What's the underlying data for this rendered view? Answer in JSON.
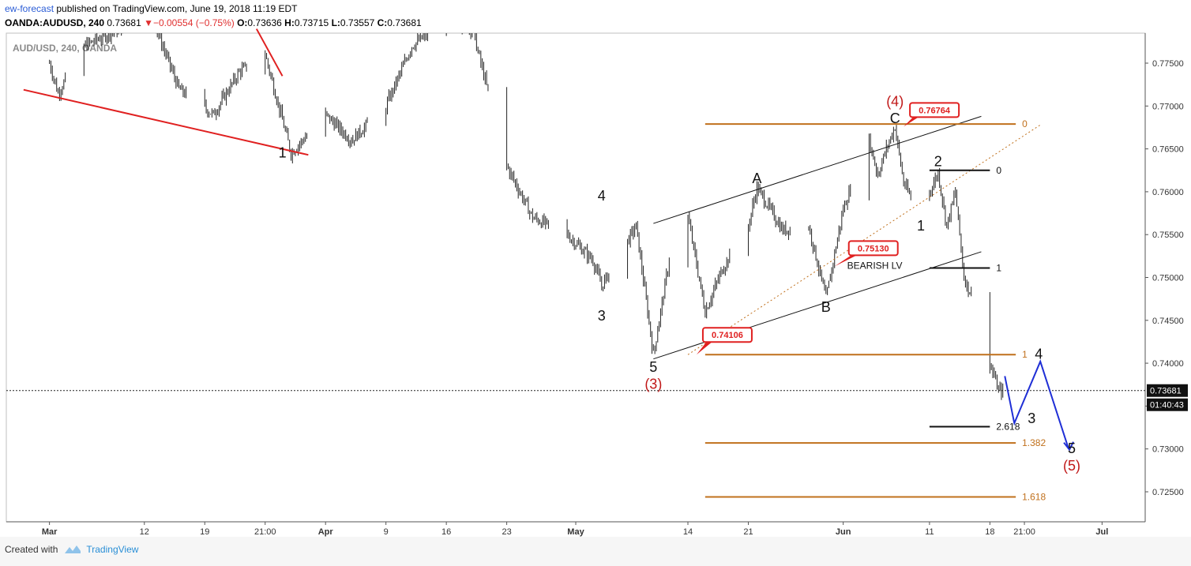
{
  "header": {
    "author": "ew-forecast",
    "published": "published on TradingView.com, June 19, 2018 11:19 EDT",
    "symbol": "OANDA:AUDUSD, 240",
    "last": "0.73681",
    "change": "▼−0.00554 (−0.75%)",
    "open_label": "O:",
    "open": "0.73636",
    "high_label": "H:",
    "high": "0.73715",
    "low_label": "L:",
    "low": "0.73557",
    "close_label": "C:",
    "close": "0.73681"
  },
  "watermark": "AUD/USD, 240, OANDA",
  "footer": {
    "created_with": "Created with",
    "brand": "TradingView"
  },
  "colors": {
    "fib": "#c0701c",
    "trend": "#e02020",
    "projection": "#1f2fd6",
    "waveRed": "#c01818",
    "calloutRed": "#e02020"
  },
  "chart_data": {
    "type": "candlestick",
    "symbol": "OANDA:AUDUSD",
    "interval": "240",
    "ylim": [
      0.7215,
      0.7785
    ],
    "y_ticks": [
      "0.77500",
      "0.77000",
      "0.76500",
      "0.76000",
      "0.75500",
      "0.75000",
      "0.74500",
      "0.74000",
      "0.73500",
      "0.73000",
      "0.72500"
    ],
    "x_ticks": [
      "Mar",
      "12",
      "19",
      "21:00",
      "Apr",
      "9",
      "16",
      "23",
      "May",
      "14",
      "21",
      "Jun",
      "11",
      "18",
      "21:00",
      "Jul"
    ],
    "price_path": [
      {
        "date": "2018-03-01",
        "price": 0.775
      },
      {
        "date": "2018-03-02",
        "price": 0.7715
      },
      {
        "date": "2018-03-05",
        "price": 0.777
      },
      {
        "date": "2018-03-09",
        "price": 0.779
      },
      {
        "date": "2018-03-13",
        "price": 0.78
      },
      {
        "date": "2018-03-16",
        "price": 0.772
      },
      {
        "date": "2018-03-20",
        "price": 0.769
      },
      {
        "date": "2018-03-23",
        "price": 0.774
      },
      {
        "date": "2018-03-26",
        "price": 0.776
      },
      {
        "date": "2018-03-29",
        "price": 0.7645
      },
      {
        "date": "2018-04-02",
        "price": 0.769
      },
      {
        "date": "2018-04-05",
        "price": 0.766
      },
      {
        "date": "2018-04-09",
        "price": 0.77
      },
      {
        "date": "2018-04-12",
        "price": 0.777
      },
      {
        "date": "2018-04-16",
        "price": 0.78
      },
      {
        "date": "2018-04-19",
        "price": 0.779
      },
      {
        "date": "2018-04-23",
        "price": 0.763
      },
      {
        "date": "2018-04-26",
        "price": 0.757
      },
      {
        "date": "2018-04-30",
        "price": 0.755
      },
      {
        "date": "2018-05-03",
        "price": 0.752
      },
      {
        "date": "2018-05-04",
        "price": 0.749
      },
      {
        "date": "2018-05-08",
        "price": 0.756
      },
      {
        "date": "2018-05-10",
        "price": 0.741
      },
      {
        "date": "2018-05-12",
        "price": 0.753
      },
      {
        "date": "2018-05-14",
        "price": 0.757
      },
      {
        "date": "2018-05-16",
        "price": 0.746
      },
      {
        "date": "2018-05-18",
        "price": 0.751
      },
      {
        "date": "2018-05-21",
        "price": 0.756
      },
      {
        "date": "2018-05-22",
        "price": 0.7605
      },
      {
        "date": "2018-05-25",
        "price": 0.7555
      },
      {
        "date": "2018-05-28",
        "price": 0.756
      },
      {
        "date": "2018-05-30",
        "price": 0.7475
      },
      {
        "date": "2018-06-01",
        "price": 0.758
      },
      {
        "date": "2018-06-04",
        "price": 0.766
      },
      {
        "date": "2018-06-05",
        "price": 0.762
      },
      {
        "date": "2018-06-06",
        "price": 0.765
      },
      {
        "date": "2018-06-07",
        "price": 0.7676
      },
      {
        "date": "2018-06-08",
        "price": 0.761
      },
      {
        "date": "2018-06-10",
        "price": 0.757
      },
      {
        "date": "2018-06-11",
        "price": 0.76
      },
      {
        "date": "2018-06-12",
        "price": 0.7622
      },
      {
        "date": "2018-06-13",
        "price": 0.756
      },
      {
        "date": "2018-06-14",
        "price": 0.76
      },
      {
        "date": "2018-06-15",
        "price": 0.75
      },
      {
        "date": "2018-06-17",
        "price": 0.745
      },
      {
        "date": "2018-06-18",
        "price": 0.74
      },
      {
        "date": "2018-06-19",
        "price": 0.7368
      }
    ],
    "current_price": "0.73681",
    "countdown": "01:40:43",
    "trendline_label": "BEARISH LV",
    "callouts": [
      {
        "text": "0.76764",
        "date": "2018-06-08",
        "price": 0.7676
      },
      {
        "text": "0.75130",
        "date": "2018-05-31",
        "price": 0.7513
      },
      {
        "text": "0.74106",
        "date": "2018-05-15",
        "price": 0.741
      }
    ],
    "fib_orange": [
      {
        "label": "0",
        "price": 0.7679
      },
      {
        "label": "1",
        "price": 0.741
      },
      {
        "label": "1.382",
        "price": 0.7307
      },
      {
        "label": "1.618",
        "price": 0.7244
      }
    ],
    "fib_black": [
      {
        "label": "0",
        "price": 0.7625
      },
      {
        "label": "1",
        "price": 0.7511
      },
      {
        "label": "2.618",
        "price": 0.7326
      }
    ],
    "wave_labels": [
      {
        "text": "1",
        "date": "2018-03-28",
        "price": 0.764,
        "color": "black"
      },
      {
        "text": "4",
        "date": "2018-05-04",
        "price": 0.759,
        "color": "black"
      },
      {
        "text": "3",
        "date": "2018-05-04",
        "price": 0.745,
        "color": "black"
      },
      {
        "text": "5",
        "date": "2018-05-10",
        "price": 0.739,
        "color": "black"
      },
      {
        "text": "(3)",
        "date": "2018-05-10",
        "price": 0.737,
        "color": "red"
      },
      {
        "text": "A",
        "date": "2018-05-22",
        "price": 0.761,
        "color": "black"
      },
      {
        "text": "B",
        "date": "2018-05-30",
        "price": 0.746,
        "color": "black"
      },
      {
        "text": "C",
        "date": "2018-06-07",
        "price": 0.768,
        "color": "black"
      },
      {
        "text": "(4)",
        "date": "2018-06-07",
        "price": 0.77,
        "color": "red"
      },
      {
        "text": "1",
        "date": "2018-06-10",
        "price": 0.7555,
        "color": "black"
      },
      {
        "text": "2",
        "date": "2018-06-12",
        "price": 0.763,
        "color": "black"
      },
      {
        "text": "4",
        "date": "2018-06-20",
        "price": 0.7405,
        "color": "black"
      },
      {
        "text": "3",
        "date": "2018-06-19",
        "price": 0.733,
        "color": "black"
      },
      {
        "text": "5",
        "date": "2018-06-22",
        "price": 0.7295,
        "color": "black"
      },
      {
        "text": "(5)",
        "date": "2018-06-22",
        "price": 0.7275,
        "color": "red"
      }
    ],
    "projection": [
      {
        "date": "2018-06-19",
        "price": 0.7385
      },
      {
        "date": "2018-06-19",
        "price": 0.733
      },
      {
        "date": "2018-06-20",
        "price": 0.7402
      },
      {
        "date": "2018-06-22",
        "price": 0.73
      }
    ]
  }
}
